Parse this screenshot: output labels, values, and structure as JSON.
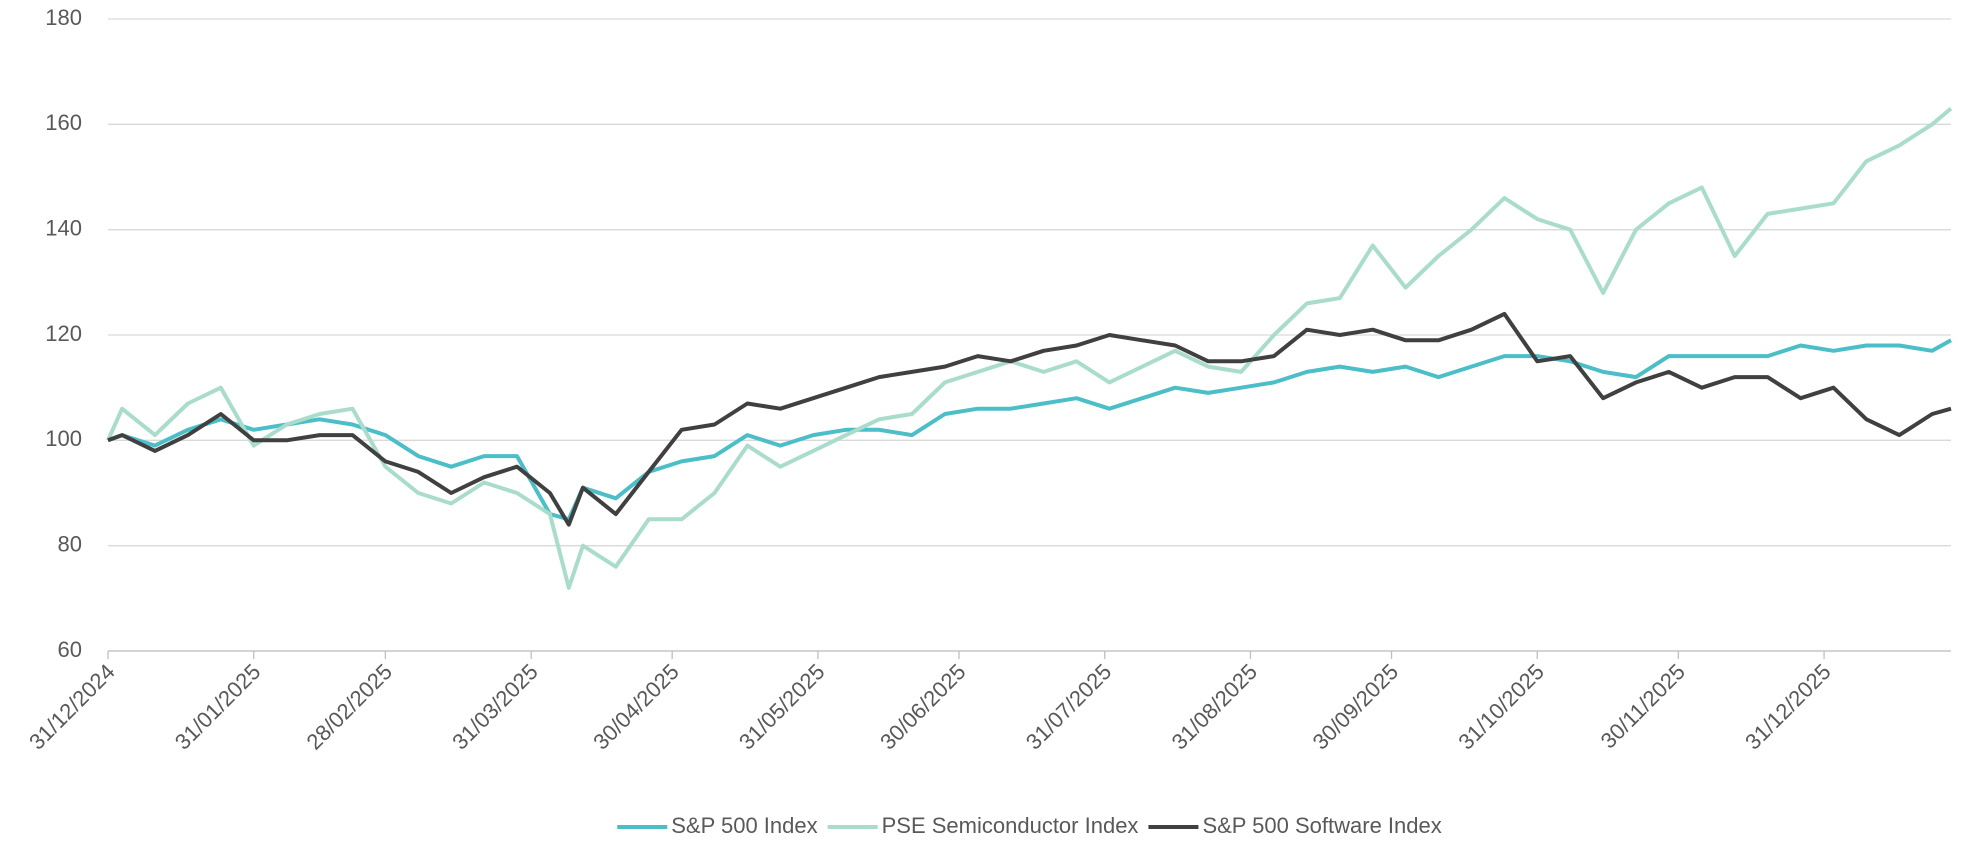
{
  "chart_data": {
    "type": "line",
    "x": [
      "2024-12-31",
      "2025-01-03",
      "2025-01-10",
      "2025-01-17",
      "2025-01-24",
      "2025-01-31",
      "2025-02-07",
      "2025-02-14",
      "2025-02-21",
      "2025-02-28",
      "2025-03-07",
      "2025-03-14",
      "2025-03-21",
      "2025-03-28",
      "2025-04-04",
      "2025-04-08",
      "2025-04-11",
      "2025-04-18",
      "2025-04-25",
      "2025-05-02",
      "2025-05-09",
      "2025-05-16",
      "2025-05-23",
      "2025-05-30",
      "2025-06-06",
      "2025-06-13",
      "2025-06-20",
      "2025-06-27",
      "2025-07-04",
      "2025-07-11",
      "2025-07-18",
      "2025-07-25",
      "2025-08-01",
      "2025-08-08",
      "2025-08-15",
      "2025-08-22",
      "2025-08-29",
      "2025-09-05",
      "2025-09-12",
      "2025-09-19",
      "2025-09-26",
      "2025-10-03",
      "2025-10-10",
      "2025-10-17",
      "2025-10-24",
      "2025-10-31",
      "2025-11-07",
      "2025-11-14",
      "2025-11-21",
      "2025-11-28",
      "2025-12-05",
      "2025-12-12",
      "2025-12-19",
      "2025-12-26",
      "2026-01-02",
      "2026-01-09",
      "2026-01-16",
      "2026-01-23",
      "2026-01-27"
    ],
    "series": [
      {
        "name": "S&P 500 Index",
        "color": "#4bbec8",
        "values": [
          100,
          101,
          99,
          102,
          104,
          102,
          103,
          104,
          103,
          101,
          97,
          95,
          97,
          97,
          86,
          85,
          91,
          89,
          94,
          96,
          97,
          101,
          99,
          101,
          102,
          102,
          101,
          105,
          106,
          106,
          107,
          108,
          106,
          108,
          110,
          109,
          110,
          111,
          113,
          114,
          113,
          114,
          112,
          114,
          116,
          116,
          115,
          113,
          112,
          116,
          116,
          116,
          116,
          118,
          117,
          118,
          118,
          117,
          119
        ]
      },
      {
        "name": "PSE Semiconductor Index",
        "color": "#a9dccb",
        "values": [
          100,
          106,
          101,
          107,
          110,
          99,
          103,
          105,
          106,
          95,
          90,
          88,
          92,
          90,
          86,
          72,
          80,
          76,
          85,
          85,
          90,
          99,
          95,
          98,
          101,
          104,
          105,
          111,
          113,
          115,
          113,
          115,
          111,
          114,
          117,
          114,
          113,
          120,
          126,
          127,
          137,
          129,
          135,
          140,
          146,
          142,
          140,
          128,
          140,
          145,
          148,
          135,
          143,
          144,
          145,
          153,
          156,
          160,
          163
        ]
      },
      {
        "name": "S&P 500 Software Index",
        "color": "#404040",
        "values": [
          100,
          101,
          98,
          101,
          105,
          100,
          100,
          101,
          101,
          96,
          94,
          90,
          93,
          95,
          90,
          84,
          91,
          86,
          94,
          102,
          103,
          107,
          106,
          108,
          110,
          112,
          113,
          114,
          116,
          115,
          117,
          118,
          120,
          119,
          118,
          115,
          115,
          116,
          121,
          120,
          121,
          119,
          119,
          121,
          124,
          115,
          116,
          108,
          111,
          113,
          110,
          112,
          112,
          108,
          110,
          104,
          101,
          105,
          106
        ]
      }
    ],
    "xlim": [
      "2024-12-31",
      "2026-01-27"
    ],
    "xticks": [
      {
        "value": "2024-12-31",
        "label": "31/12/2024"
      },
      {
        "value": "2025-01-31",
        "label": "31/01/2025"
      },
      {
        "value": "2025-02-28",
        "label": "28/02/2025"
      },
      {
        "value": "2025-03-31",
        "label": "31/03/2025"
      },
      {
        "value": "2025-04-30",
        "label": "30/04/2025"
      },
      {
        "value": "2025-05-31",
        "label": "31/05/2025"
      },
      {
        "value": "2025-06-30",
        "label": "30/06/2025"
      },
      {
        "value": "2025-07-31",
        "label": "31/07/2025"
      },
      {
        "value": "2025-08-31",
        "label": "31/08/2025"
      },
      {
        "value": "2025-09-30",
        "label": "30/09/2025"
      },
      {
        "value": "2025-10-31",
        "label": "31/10/2025"
      },
      {
        "value": "2025-11-30",
        "label": "30/11/2025"
      },
      {
        "value": "2025-12-31",
        "label": "31/12/2025"
      }
    ],
    "ylim": [
      60,
      180
    ],
    "yticks": [
      60,
      80,
      100,
      120,
      140,
      160,
      180
    ],
    "grid": true,
    "legend": "bottom"
  }
}
